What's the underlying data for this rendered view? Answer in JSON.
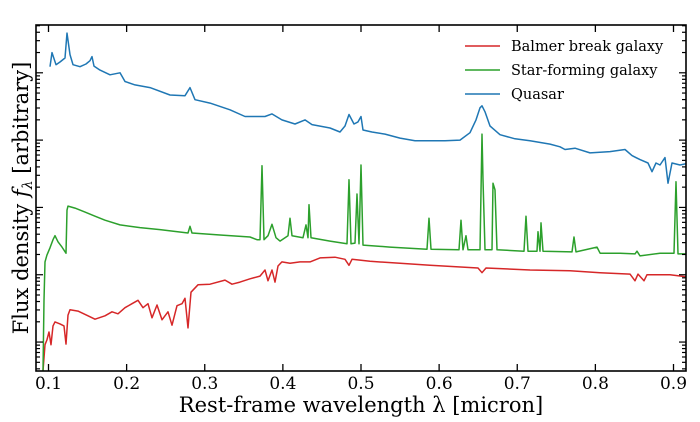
{
  "chart_data": {
    "type": "line",
    "title": "",
    "xlabel": "Rest-frame wavelength λ [micron]",
    "ylabel_prefix": "Flux density ",
    "ylabel_symbol": "f",
    "ylabel_subscript": "λ",
    "ylabel_suffix": " [arbitrary]",
    "xlim": [
      0.084,
      0.916
    ],
    "x_ticks": [
      0.1,
      0.2,
      0.3,
      0.4,
      0.5,
      0.6,
      0.7,
      0.8,
      0.9
    ],
    "x_tick_labels": [
      "0.1",
      "0.2",
      "0.3",
      "0.4",
      "0.5",
      "0.6",
      "0.7",
      "0.8",
      "0.9"
    ],
    "yscale": "log",
    "y_units": "log10 flux (arbitrary, unlabeled decades)",
    "ylim_log10": [
      -0.43,
      4.71
    ],
    "y_major_ticks_log10": [
      0,
      1,
      2,
      3,
      4
    ],
    "y_tick_labels": [],
    "grid": false,
    "legend_position": "top-right",
    "series": [
      {
        "name": "Balmer break galaxy",
        "color": "#d62728",
        "points": [
          [
            0.093,
            -0.43
          ],
          [
            0.0955,
            -0.04
          ],
          [
            0.098,
            0.03
          ],
          [
            0.1006,
            0.15
          ],
          [
            0.1032,
            -0.04
          ],
          [
            0.1058,
            0.24
          ],
          [
            0.1083,
            0.3
          ],
          [
            0.1147,
            0.27
          ],
          [
            0.1198,
            0.24
          ],
          [
            0.1224,
            -0.03
          ],
          [
            0.125,
            0.4
          ],
          [
            0.1275,
            0.48
          ],
          [
            0.1378,
            0.46
          ],
          [
            0.1506,
            0.39
          ],
          [
            0.1595,
            0.34
          ],
          [
            0.1723,
            0.39
          ],
          [
            0.1813,
            0.45
          ],
          [
            0.1889,
            0.42
          ],
          [
            0.1979,
            0.51
          ],
          [
            0.2069,
            0.57
          ],
          [
            0.2146,
            0.62
          ],
          [
            0.221,
            0.51
          ],
          [
            0.2274,
            0.57
          ],
          [
            0.2325,
            0.36
          ],
          [
            0.2389,
            0.55
          ],
          [
            0.2453,
            0.33
          ],
          [
            0.253,
            0.45
          ],
          [
            0.2581,
            0.25
          ],
          [
            0.2645,
            0.54
          ],
          [
            0.2709,
            0.57
          ],
          [
            0.2747,
            0.65
          ],
          [
            0.2786,
            0.21
          ],
          [
            0.2824,
            0.74
          ],
          [
            0.2914,
            0.85
          ],
          [
            0.3067,
            0.86
          ],
          [
            0.3259,
            0.92
          ],
          [
            0.3349,
            0.86
          ],
          [
            0.3451,
            0.89
          ],
          [
            0.3579,
            0.94
          ],
          [
            0.3707,
            0.98
          ],
          [
            0.3771,
            1.07
          ],
          [
            0.381,
            0.91
          ],
          [
            0.3861,
            1.07
          ],
          [
            0.3899,
            0.89
          ],
          [
            0.3938,
            1.13
          ],
          [
            0.3988,
            1.19
          ],
          [
            0.4091,
            1.17
          ],
          [
            0.4219,
            1.19
          ],
          [
            0.4347,
            1.19
          ],
          [
            0.4475,
            1.25
          ],
          [
            0.4667,
            1.26
          ],
          [
            0.4795,
            1.23
          ],
          [
            0.4846,
            1.14
          ],
          [
            0.4885,
            1.23
          ],
          [
            0.5115,
            1.2
          ],
          [
            0.5499,
            1.17
          ],
          [
            0.5883,
            1.14
          ],
          [
            0.6498,
            1.1
          ],
          [
            0.6549,
            1.03
          ],
          [
            0.66,
            1.1
          ],
          [
            0.7163,
            1.07
          ],
          [
            0.7675,
            1.06
          ],
          [
            0.806,
            1.03
          ],
          [
            0.8443,
            1.01
          ],
          [
            0.8507,
            0.91
          ],
          [
            0.8546,
            1.01
          ],
          [
            0.8622,
            0.91
          ],
          [
            0.8661,
            1.0
          ],
          [
            0.8955,
            1.0
          ],
          [
            0.916,
            0.97
          ]
        ]
      },
      {
        "name": "Star-forming galaxy",
        "color": "#2ca02c",
        "points": [
          [
            0.093,
            -0.43
          ],
          [
            0.0942,
            0.62
          ],
          [
            0.0955,
            1.19
          ],
          [
            0.098,
            1.29
          ],
          [
            0.1019,
            1.4
          ],
          [
            0.1058,
            1.52
          ],
          [
            0.1083,
            1.58
          ],
          [
            0.1122,
            1.49
          ],
          [
            0.1173,
            1.41
          ],
          [
            0.1224,
            1.32
          ],
          [
            0.1237,
            1.96
          ],
          [
            0.125,
            2.02
          ],
          [
            0.1339,
            1.99
          ],
          [
            0.1467,
            1.93
          ],
          [
            0.1595,
            1.87
          ],
          [
            0.1723,
            1.81
          ],
          [
            0.1915,
            1.74
          ],
          [
            0.2171,
            1.7
          ],
          [
            0.2427,
            1.67
          ],
          [
            0.2786,
            1.62
          ],
          [
            0.2811,
            1.72
          ],
          [
            0.2837,
            1.62
          ],
          [
            0.3195,
            1.59
          ],
          [
            0.3579,
            1.56
          ],
          [
            0.3669,
            1.52
          ],
          [
            0.3707,
            1.52
          ],
          [
            0.3733,
            2.62
          ],
          [
            0.3758,
            1.52
          ],
          [
            0.381,
            1.58
          ],
          [
            0.3861,
            1.75
          ],
          [
            0.3912,
            1.55
          ],
          [
            0.3963,
            1.5
          ],
          [
            0.4066,
            1.58
          ],
          [
            0.4091,
            1.84
          ],
          [
            0.4117,
            1.58
          ],
          [
            0.4258,
            1.55
          ],
          [
            0.4296,
            1.74
          ],
          [
            0.4322,
            1.55
          ],
          [
            0.4335,
            2.04
          ],
          [
            0.436,
            1.55
          ],
          [
            0.4603,
            1.5
          ],
          [
            0.4821,
            1.46
          ],
          [
            0.4846,
            2.41
          ],
          [
            0.4872,
            1.46
          ],
          [
            0.4923,
            1.47
          ],
          [
            0.4949,
            2.2
          ],
          [
            0.4974,
            1.46
          ],
          [
            0.5,
            2.63
          ],
          [
            0.5026,
            1.44
          ],
          [
            0.5371,
            1.41
          ],
          [
            0.5845,
            1.38
          ],
          [
            0.587,
            1.84
          ],
          [
            0.5896,
            1.38
          ],
          [
            0.6254,
            1.37
          ],
          [
            0.628,
            1.81
          ],
          [
            0.6305,
            1.37
          ],
          [
            0.6344,
            1.58
          ],
          [
            0.6369,
            1.37
          ],
          [
            0.6523,
            1.37
          ],
          [
            0.6549,
            3.09
          ],
          [
            0.6562,
            2.41
          ],
          [
            0.6587,
            1.37
          ],
          [
            0.6677,
            1.37
          ],
          [
            0.669,
            2.36
          ],
          [
            0.6715,
            2.26
          ],
          [
            0.6741,
            1.37
          ],
          [
            0.7086,
            1.35
          ],
          [
            0.7112,
            1.87
          ],
          [
            0.7138,
            1.35
          ],
          [
            0.7253,
            1.35
          ],
          [
            0.7265,
            1.64
          ],
          [
            0.7291,
            1.35
          ],
          [
            0.7304,
            1.77
          ],
          [
            0.7329,
            1.35
          ],
          [
            0.7701,
            1.34
          ],
          [
            0.7726,
            1.56
          ],
          [
            0.7752,
            1.34
          ],
          [
            0.8021,
            1.41
          ],
          [
            0.806,
            1.32
          ],
          [
            0.8315,
            1.32
          ],
          [
            0.8507,
            1.31
          ],
          [
            0.8533,
            1.35
          ],
          [
            0.8571,
            1.28
          ],
          [
            0.8827,
            1.32
          ],
          [
            0.9006,
            1.32
          ],
          [
            0.9032,
            2.38
          ],
          [
            0.9058,
            1.31
          ],
          [
            0.916,
            1.31
          ]
        ]
      },
      {
        "name": "Quasar",
        "color": "#1f77b4",
        "points": [
          [
            0.1019,
            4.09
          ],
          [
            0.1045,
            4.3
          ],
          [
            0.1096,
            4.12
          ],
          [
            0.1147,
            4.16
          ],
          [
            0.1211,
            4.22
          ],
          [
            0.1237,
            4.59
          ],
          [
            0.1275,
            4.27
          ],
          [
            0.1314,
            4.12
          ],
          [
            0.1403,
            4.09
          ],
          [
            0.148,
            4.13
          ],
          [
            0.1531,
            4.18
          ],
          [
            0.1557,
            4.24
          ],
          [
            0.1583,
            4.1
          ],
          [
            0.1659,
            4.04
          ],
          [
            0.1787,
            3.97
          ],
          [
            0.1915,
            4.0
          ],
          [
            0.1979,
            3.87
          ],
          [
            0.2107,
            3.82
          ],
          [
            0.2299,
            3.78
          ],
          [
            0.2555,
            3.67
          ],
          [
            0.2747,
            3.66
          ],
          [
            0.2811,
            3.78
          ],
          [
            0.2875,
            3.6
          ],
          [
            0.3067,
            3.55
          ],
          [
            0.3323,
            3.45
          ],
          [
            0.3515,
            3.35
          ],
          [
            0.3771,
            3.35
          ],
          [
            0.386,
            3.39
          ],
          [
            0.3988,
            3.3
          ],
          [
            0.4155,
            3.24
          ],
          [
            0.4283,
            3.3
          ],
          [
            0.4373,
            3.23
          ],
          [
            0.4603,
            3.18
          ],
          [
            0.4731,
            3.12
          ],
          [
            0.4795,
            3.21
          ],
          [
            0.4846,
            3.38
          ],
          [
            0.491,
            3.24
          ],
          [
            0.4962,
            3.27
          ],
          [
            0.5,
            3.35
          ],
          [
            0.5026,
            3.15
          ],
          [
            0.514,
            3.12
          ],
          [
            0.5307,
            3.09
          ],
          [
            0.5499,
            3.03
          ],
          [
            0.5691,
            2.99
          ],
          [
            0.5883,
            2.99
          ],
          [
            0.6075,
            2.99
          ],
          [
            0.6267,
            3.0
          ],
          [
            0.6395,
            3.11
          ],
          [
            0.6472,
            3.3
          ],
          [
            0.6523,
            3.48
          ],
          [
            0.6549,
            3.51
          ],
          [
            0.6587,
            3.42
          ],
          [
            0.6651,
            3.21
          ],
          [
            0.6779,
            3.08
          ],
          [
            0.6971,
            3.02
          ],
          [
            0.7163,
            2.99
          ],
          [
            0.7419,
            2.94
          ],
          [
            0.7547,
            2.9
          ],
          [
            0.7611,
            2.86
          ],
          [
            0.7739,
            2.88
          ],
          [
            0.7931,
            2.81
          ],
          [
            0.8187,
            2.83
          ],
          [
            0.8379,
            2.86
          ],
          [
            0.8469,
            2.77
          ],
          [
            0.8571,
            2.71
          ],
          [
            0.8674,
            2.66
          ],
          [
            0.8725,
            2.53
          ],
          [
            0.8776,
            2.66
          ],
          [
            0.8827,
            2.63
          ],
          [
            0.8891,
            2.74
          ],
          [
            0.893,
            2.36
          ],
          [
            0.8981,
            2.66
          ],
          [
            0.9083,
            2.63
          ],
          [
            0.916,
            2.65
          ]
        ]
      }
    ]
  }
}
